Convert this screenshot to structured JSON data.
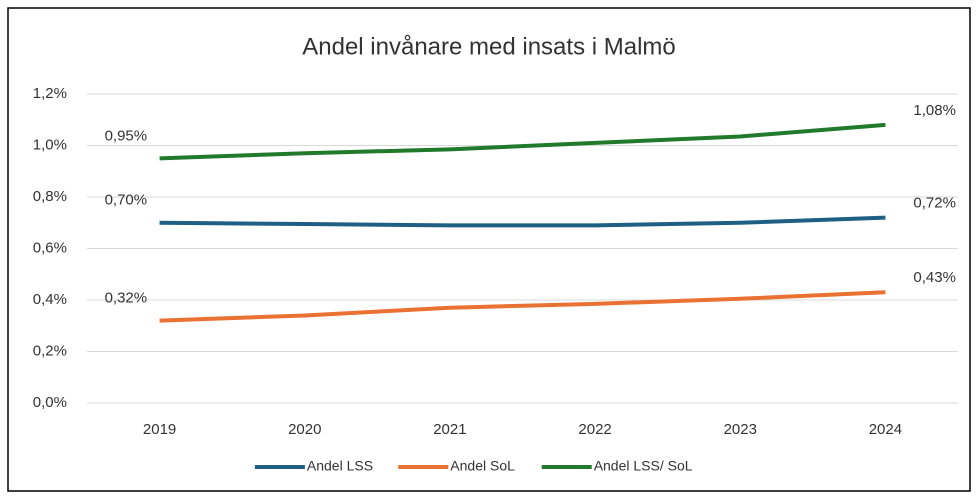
{
  "chart_data": {
    "type": "line",
    "title": "Andel invånare med insats i Malmö",
    "categories": [
      "2019",
      "2020",
      "2021",
      "2022",
      "2023",
      "2024"
    ],
    "series": [
      {
        "name": "Andel LSS",
        "color": "#1f5f84",
        "values": [
          0.7,
          0.695,
          0.69,
          0.69,
          0.7,
          0.72
        ],
        "value_labels": [
          "0,70%",
          null,
          null,
          null,
          null,
          "0,72%"
        ]
      },
      {
        "name": "Andel SoL",
        "color": "#e97132",
        "values": [
          0.32,
          0.34,
          0.37,
          0.385,
          0.405,
          0.43
        ],
        "value_labels": [
          "0,32%",
          null,
          null,
          null,
          null,
          "0,43%"
        ]
      },
      {
        "name": "Andel LSS/ SoL",
        "color": "#217a2c",
        "values": [
          0.95,
          0.97,
          0.985,
          1.01,
          1.035,
          1.08
        ],
        "value_labels": [
          "0,95%",
          null,
          null,
          null,
          null,
          "1,08%"
        ]
      }
    ],
    "ylim": [
      0,
      1.2
    ],
    "yticks": [
      {
        "value": 0,
        "label": "0,0%"
      },
      {
        "value": 0.2,
        "label": "0,2%"
      },
      {
        "value": 0.4,
        "label": "0,4%"
      },
      {
        "value": 0.6,
        "label": "0,6%"
      },
      {
        "value": 0.8,
        "label": "0,8%"
      },
      {
        "value": 1.0,
        "label": "1,0%"
      },
      {
        "value": 1.2,
        "label": "1,2%"
      }
    ],
    "grid": true,
    "legend": "bottom"
  }
}
